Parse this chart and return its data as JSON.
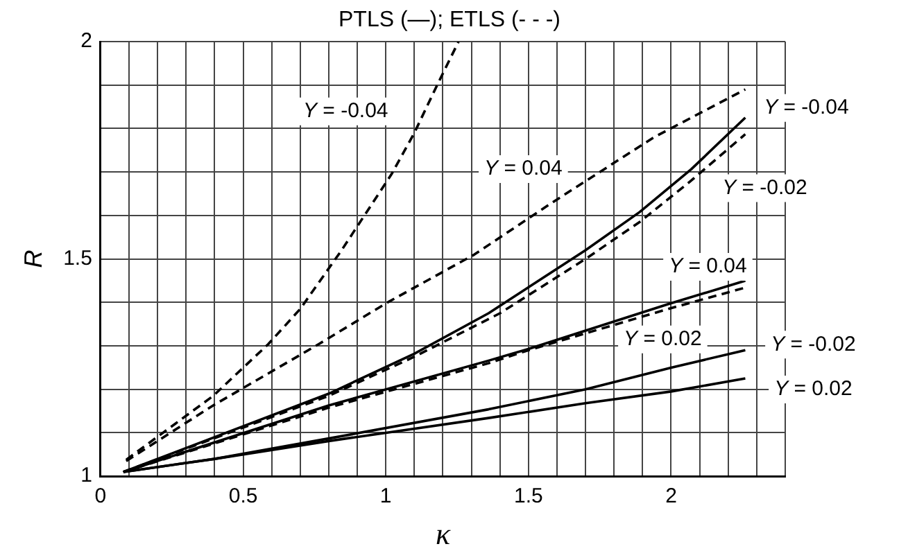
{
  "chart_data": {
    "type": "line",
    "title": "PTLS (—); ETLS (- - -)",
    "xlabel": "κ",
    "ylabel": "R",
    "xlim": [
      0,
      2.4
    ],
    "ylim": [
      1,
      2
    ],
    "xticks": [
      0,
      {
        "value": 0.1,
        "label": null
      },
      {
        "value": 0.2,
        "label": null
      },
      {
        "value": 0.3,
        "label": null
      },
      {
        "value": 0.4,
        "label": null
      },
      0.5,
      {
        "value": 0.6,
        "label": null
      },
      {
        "value": 0.7,
        "label": null
      },
      {
        "value": 0.8,
        "label": null
      },
      {
        "value": 0.9,
        "label": null
      },
      1,
      {
        "value": 1.1,
        "label": null
      },
      {
        "value": 1.2,
        "label": null
      },
      {
        "value": 1.3,
        "label": null
      },
      {
        "value": 1.4,
        "label": null
      },
      1.5,
      {
        "value": 1.6,
        "label": null
      },
      {
        "value": 1.7,
        "label": null
      },
      {
        "value": 1.8,
        "label": null
      },
      {
        "value": 1.9,
        "label": null
      },
      2,
      {
        "value": 2.1,
        "label": null
      },
      {
        "value": 2.2,
        "label": null
      },
      {
        "value": 2.3,
        "label": null
      },
      {
        "value": 2.4,
        "label": null
      }
    ],
    "yticks": [
      1,
      {
        "value": 1.1,
        "label": null
      },
      {
        "value": 1.2,
        "label": null
      },
      {
        "value": 1.3,
        "label": null
      },
      {
        "value": 1.4,
        "label": null
      },
      1.5,
      {
        "value": 1.6,
        "label": null
      },
      {
        "value": 1.7,
        "label": null
      },
      {
        "value": 1.8,
        "label": null
      },
      {
        "value": 1.9,
        "label": null
      },
      2
    ],
    "grid": true,
    "legend": false,
    "marker": "none",
    "series": [
      {
        "name": "Y = -0.04",
        "color": "#000000",
        "line_style": "dashed",
        "x": [
          0.09,
          0.395,
          0.588,
          0.7,
          0.845,
          1.02,
          1.1,
          1.18,
          1.255
        ],
        "values": [
          1.038,
          1.185,
          1.304,
          1.385,
          1.52,
          1.695,
          1.79,
          1.9,
          2.0
        ]
      },
      {
        "name": "Y = 0.04",
        "color": "#000000",
        "line_style": "dashed",
        "x": [
          0.09,
          0.395,
          0.765,
          1.006,
          1.31,
          1.584,
          1.94,
          2.26
        ],
        "values": [
          1.035,
          1.163,
          1.304,
          1.4,
          1.51,
          1.63,
          1.78,
          1.89
        ]
      },
      {
        "name": "Y = -0.04",
        "color": "#000000",
        "line_style": "solid",
        "x": [
          0.08,
          0.8,
          1.1,
          1.36,
          1.7,
          1.89,
          2.07,
          2.26
        ],
        "values": [
          1.01,
          1.19,
          1.282,
          1.375,
          1.52,
          1.608,
          1.706,
          1.825
        ]
      },
      {
        "name": "Y = -0.02",
        "color": "#000000",
        "line_style": "dashed",
        "x": [
          0.08,
          0.8,
          1.1,
          1.4,
          1.7,
          1.89,
          2.07,
          2.26
        ],
        "values": [
          1.01,
          1.185,
          1.275,
          1.375,
          1.5,
          1.585,
          1.68,
          1.787
        ]
      },
      {
        "name": "Y = 0.04",
        "color": "#000000",
        "line_style": "solid",
        "x": [
          0.08,
          0.8,
          1.36,
          1.5,
          1.99,
          2.26
        ],
        "values": [
          1.01,
          1.163,
          1.266,
          1.293,
          1.396,
          1.45
        ]
      },
      {
        "name": "Y = 0.02",
        "color": "#000000",
        "line_style": "dashed",
        "x": [
          0.08,
          0.8,
          1.36,
          1.5,
          1.99,
          2.26
        ],
        "values": [
          1.01,
          1.158,
          1.26,
          1.29,
          1.385,
          1.434
        ]
      },
      {
        "name": "Y = -0.02",
        "color": "#000000",
        "line_style": "solid",
        "x": [
          0.08,
          0.4,
          0.8,
          1.36,
          1.7,
          2.0,
          2.26
        ],
        "values": [
          1.01,
          1.04,
          1.087,
          1.154,
          1.2,
          1.25,
          1.29
        ]
      },
      {
        "name": "Y = 0.02",
        "color": "#000000",
        "line_style": "solid",
        "x": [
          0.08,
          0.4,
          0.8,
          1.36,
          1.7,
          2.0,
          2.26
        ],
        "values": [
          1.01,
          1.04,
          1.081,
          1.134,
          1.168,
          1.195,
          1.225
        ]
      }
    ]
  }
}
